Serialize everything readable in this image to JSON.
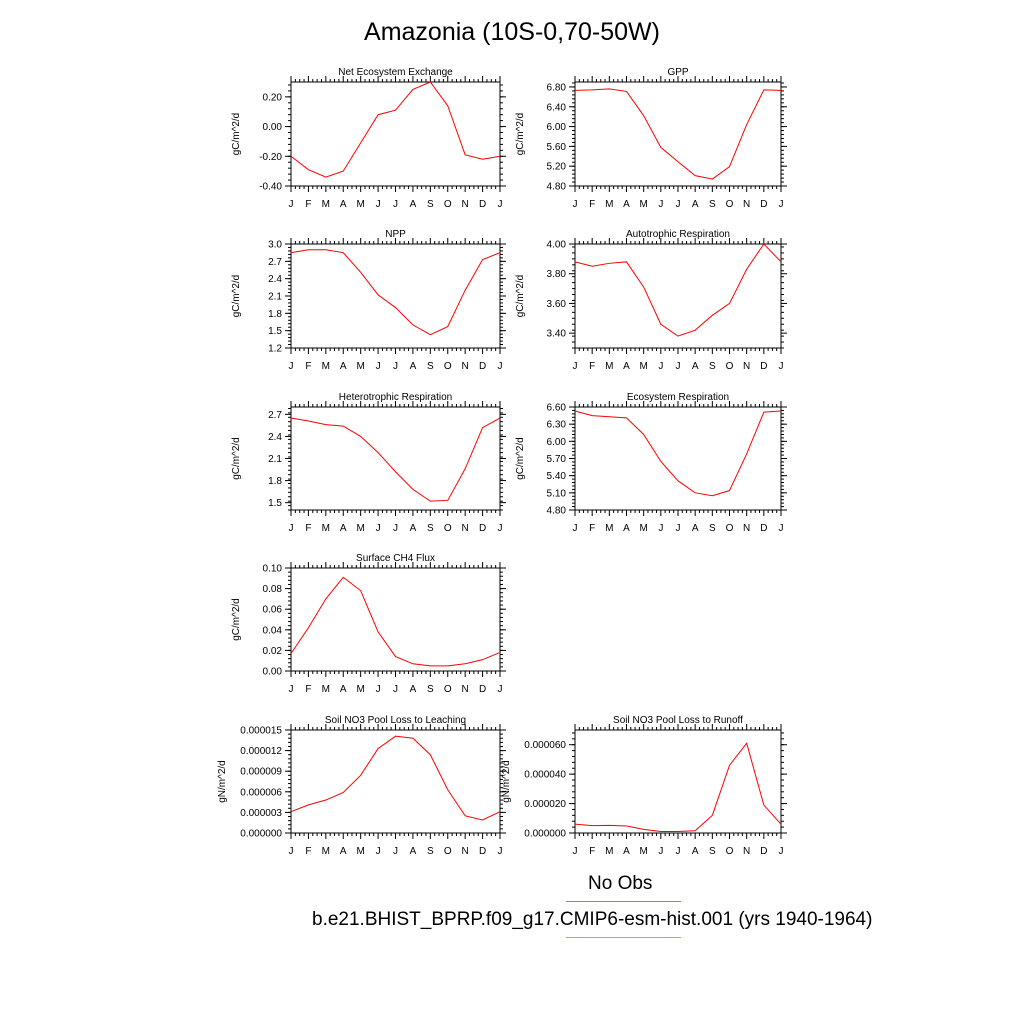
{
  "page": {
    "title": "Amazonia (10S-0,70-50W)"
  },
  "legend": {
    "items": [
      {
        "label": "No Obs",
        "color": "#8080ff"
      },
      {
        "label": "b.e21.BHIST_BPRP.f09_g17.CMIP6-esm-hist.001 (yrs 1940-1964)",
        "color": "#ff8080"
      }
    ]
  },
  "colors": {
    "series": "#ff0000",
    "axis": "#000000"
  },
  "chart_data": [
    {
      "id": "nee",
      "type": "line",
      "title": "Net Ecosystem Exchange",
      "ylabel": "gC/m^2/d",
      "x": [
        "J",
        "F",
        "M",
        "A",
        "M",
        "J",
        "J",
        "A",
        "S",
        "O",
        "N",
        "D",
        "J"
      ],
      "ylim": [
        -0.4,
        0.3
      ],
      "yticks": [
        "-0.40",
        "-0.20",
        "0.00",
        "0.20"
      ],
      "ytick_values": [
        -0.4,
        -0.2,
        0.0,
        0.2
      ],
      "series": [
        {
          "values": [
            -0.2,
            -0.29,
            -0.34,
            -0.3,
            -0.11,
            0.08,
            0.11,
            0.25,
            0.3,
            0.14,
            -0.19,
            -0.22,
            -0.2
          ]
        }
      ]
    },
    {
      "id": "gpp",
      "type": "line",
      "title": "GPP",
      "ylabel": "gC/m^2/d",
      "x": [
        "J",
        "F",
        "M",
        "A",
        "M",
        "J",
        "J",
        "A",
        "S",
        "O",
        "N",
        "D",
        "J"
      ],
      "ylim": [
        4.8,
        6.9
      ],
      "yticks": [
        "4.80",
        "5.20",
        "5.60",
        "6.00",
        "6.40",
        "6.80"
      ],
      "ytick_values": [
        4.8,
        5.2,
        5.6,
        6.0,
        6.4,
        6.8
      ],
      "series": [
        {
          "values": [
            6.73,
            6.74,
            6.76,
            6.71,
            6.22,
            5.58,
            5.29,
            5.01,
            4.94,
            5.19,
            6.04,
            6.74,
            6.73
          ]
        }
      ]
    },
    {
      "id": "npp",
      "type": "line",
      "title": "NPP",
      "ylabel": "gC/m^2/d",
      "x": [
        "J",
        "F",
        "M",
        "A",
        "M",
        "J",
        "J",
        "A",
        "S",
        "O",
        "N",
        "D",
        "J"
      ],
      "ylim": [
        1.2,
        3.0
      ],
      "yticks": [
        "1.2",
        "1.5",
        "1.8",
        "2.1",
        "2.4",
        "2.7",
        "3.0"
      ],
      "ytick_values": [
        1.2,
        1.5,
        1.8,
        2.1,
        2.4,
        2.7,
        3.0
      ],
      "series": [
        {
          "values": [
            2.85,
            2.9,
            2.9,
            2.85,
            2.51,
            2.12,
            1.9,
            1.6,
            1.43,
            1.57,
            2.2,
            2.73,
            2.85
          ]
        }
      ]
    },
    {
      "id": "ar",
      "type": "line",
      "title": "Autotrophic Respiration",
      "ylabel": "gC/m^2/d",
      "x": [
        "J",
        "F",
        "M",
        "A",
        "M",
        "J",
        "J",
        "A",
        "S",
        "O",
        "N",
        "D",
        "J"
      ],
      "ylim": [
        3.3,
        4.0
      ],
      "yticks": [
        "3.40",
        "3.60",
        "3.80",
        "4.00"
      ],
      "ytick_values": [
        3.4,
        3.6,
        3.8,
        4.0
      ],
      "series": [
        {
          "values": [
            3.88,
            3.85,
            3.87,
            3.88,
            3.71,
            3.46,
            3.38,
            3.42,
            3.52,
            3.6,
            3.83,
            4.0,
            3.88
          ]
        }
      ]
    },
    {
      "id": "hr",
      "type": "line",
      "title": "Heterotrophic Respiration",
      "ylabel": "gC/m^2/d",
      "x": [
        "J",
        "F",
        "M",
        "A",
        "M",
        "J",
        "J",
        "A",
        "S",
        "O",
        "N",
        "D",
        "J"
      ],
      "ylim": [
        1.4,
        2.8
      ],
      "yticks": [
        "1.5",
        "1.8",
        "2.1",
        "2.4",
        "2.7"
      ],
      "ytick_values": [
        1.5,
        1.8,
        2.1,
        2.4,
        2.7
      ],
      "series": [
        {
          "values": [
            2.65,
            2.61,
            2.56,
            2.54,
            2.4,
            2.18,
            1.92,
            1.68,
            1.52,
            1.53,
            1.96,
            2.52,
            2.65
          ]
        }
      ]
    },
    {
      "id": "er",
      "type": "line",
      "title": "Ecosystem Respiration",
      "ylabel": "gC/m^2/d",
      "x": [
        "J",
        "F",
        "M",
        "A",
        "M",
        "J",
        "J",
        "A",
        "S",
        "O",
        "N",
        "D",
        "J"
      ],
      "ylim": [
        4.8,
        6.6
      ],
      "yticks": [
        "4.80",
        "5.10",
        "5.40",
        "5.70",
        "6.00",
        "6.30",
        "6.60"
      ],
      "ytick_values": [
        4.8,
        5.1,
        5.4,
        5.7,
        6.0,
        6.3,
        6.6
      ],
      "series": [
        {
          "values": [
            6.53,
            6.45,
            6.43,
            6.41,
            6.12,
            5.65,
            5.31,
            5.1,
            5.05,
            5.14,
            5.78,
            6.51,
            6.53
          ]
        }
      ]
    },
    {
      "id": "ch4",
      "type": "line",
      "title": "Surface CH4 Flux",
      "ylabel": "gC/m^2/d",
      "x": [
        "J",
        "F",
        "M",
        "A",
        "M",
        "J",
        "J",
        "A",
        "S",
        "O",
        "N",
        "D",
        "J"
      ],
      "ylim": [
        0.0,
        0.1
      ],
      "yticks": [
        "0.00",
        "0.02",
        "0.04",
        "0.06",
        "0.08",
        "0.10"
      ],
      "ytick_values": [
        0.0,
        0.02,
        0.04,
        0.06,
        0.08,
        0.1
      ],
      "series": [
        {
          "values": [
            0.017,
            0.042,
            0.07,
            0.091,
            0.078,
            0.038,
            0.014,
            0.007,
            0.005,
            0.005,
            0.007,
            0.011,
            0.018
          ]
        }
      ]
    },
    {
      "id": "leach",
      "type": "line",
      "title": "Soil NO3 Pool Loss to Leaching",
      "ylabel": "gN/m^2/d",
      "x": [
        "J",
        "F",
        "M",
        "A",
        "M",
        "J",
        "J",
        "A",
        "S",
        "O",
        "N",
        "D",
        "J"
      ],
      "ylim": [
        0.0,
        1.5e-05
      ],
      "yticks": [
        "0.000000",
        "0.000003",
        "0.000006",
        "0.000009",
        "0.000012",
        "0.000015"
      ],
      "ytick_values": [
        0.0,
        3e-06,
        6e-06,
        9e-06,
        1.2e-05,
        1.5e-05
      ],
      "series": [
        {
          "values": [
            3.1e-06,
            4.1e-06,
            4.8e-06,
            5.9e-06,
            8.4e-06,
            1.23e-05,
            1.41e-05,
            1.38e-05,
            1.14e-05,
            6.3e-06,
            2.5e-06,
            1.9e-06,
            3.1e-06
          ]
        }
      ]
    },
    {
      "id": "runoff",
      "type": "line",
      "title": "Soil NO3 Pool Loss to Runoff",
      "ylabel": "gN/m^2/d",
      "x": [
        "J",
        "F",
        "M",
        "A",
        "M",
        "J",
        "J",
        "A",
        "S",
        "O",
        "N",
        "D",
        "J"
      ],
      "ylim": [
        0.0,
        7e-05
      ],
      "yticks": [
        "0.000000",
        "0.000020",
        "0.000040",
        "0.000060"
      ],
      "ytick_values": [
        0.0,
        2e-05,
        4e-05,
        6e-05
      ],
      "series": [
        {
          "values": [
            6e-06,
            5e-06,
            5.2e-06,
            4.8e-06,
            2.5e-06,
            1e-06,
            1e-06,
            1.5e-06,
            1.2e-05,
            4.6e-05,
            6.1e-05,
            1.9e-05,
            6e-06
          ]
        }
      ]
    }
  ]
}
